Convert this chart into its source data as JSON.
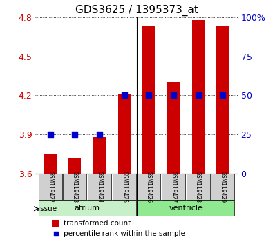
{
  "title": "GDS3625 / 1395373_at",
  "samples": [
    "GSM119422",
    "GSM119423",
    "GSM119424",
    "GSM119425",
    "GSM119426",
    "GSM119427",
    "GSM119428",
    "GSM119429"
  ],
  "red_values": [
    3.75,
    3.72,
    3.88,
    4.21,
    4.73,
    4.3,
    4.78,
    4.73
  ],
  "blue_values_pct": [
    25,
    25,
    25,
    50,
    50,
    50,
    50,
    50
  ],
  "ymin": 3.6,
  "ymax": 4.8,
  "yticks": [
    3.6,
    3.9,
    4.2,
    4.5,
    4.8
  ],
  "y_right_ticks": [
    0,
    25,
    50,
    75,
    100
  ],
  "y_right_labels": [
    "0",
    "25",
    "50",
    "75",
    "100%"
  ],
  "groups": [
    {
      "label": "atrium",
      "start": 0,
      "end": 4,
      "color": "#c8f0c8"
    },
    {
      "label": "ventricle",
      "start": 4,
      "end": 8,
      "color": "#90e890"
    }
  ],
  "group_label_prefix": "tissue",
  "bar_color": "#cc0000",
  "dot_color": "#0000cc",
  "bar_bottom": 3.6,
  "bar_width": 0.5,
  "dot_size": 40,
  "grid_color": "#000000",
  "background_color": "#ffffff",
  "plot_bg_color": "#ffffff",
  "tick_color_left": "#cc0000",
  "tick_color_right": "#0000cc",
  "xlabel_rotation": -90,
  "label_box_color": "#d0d0d0"
}
